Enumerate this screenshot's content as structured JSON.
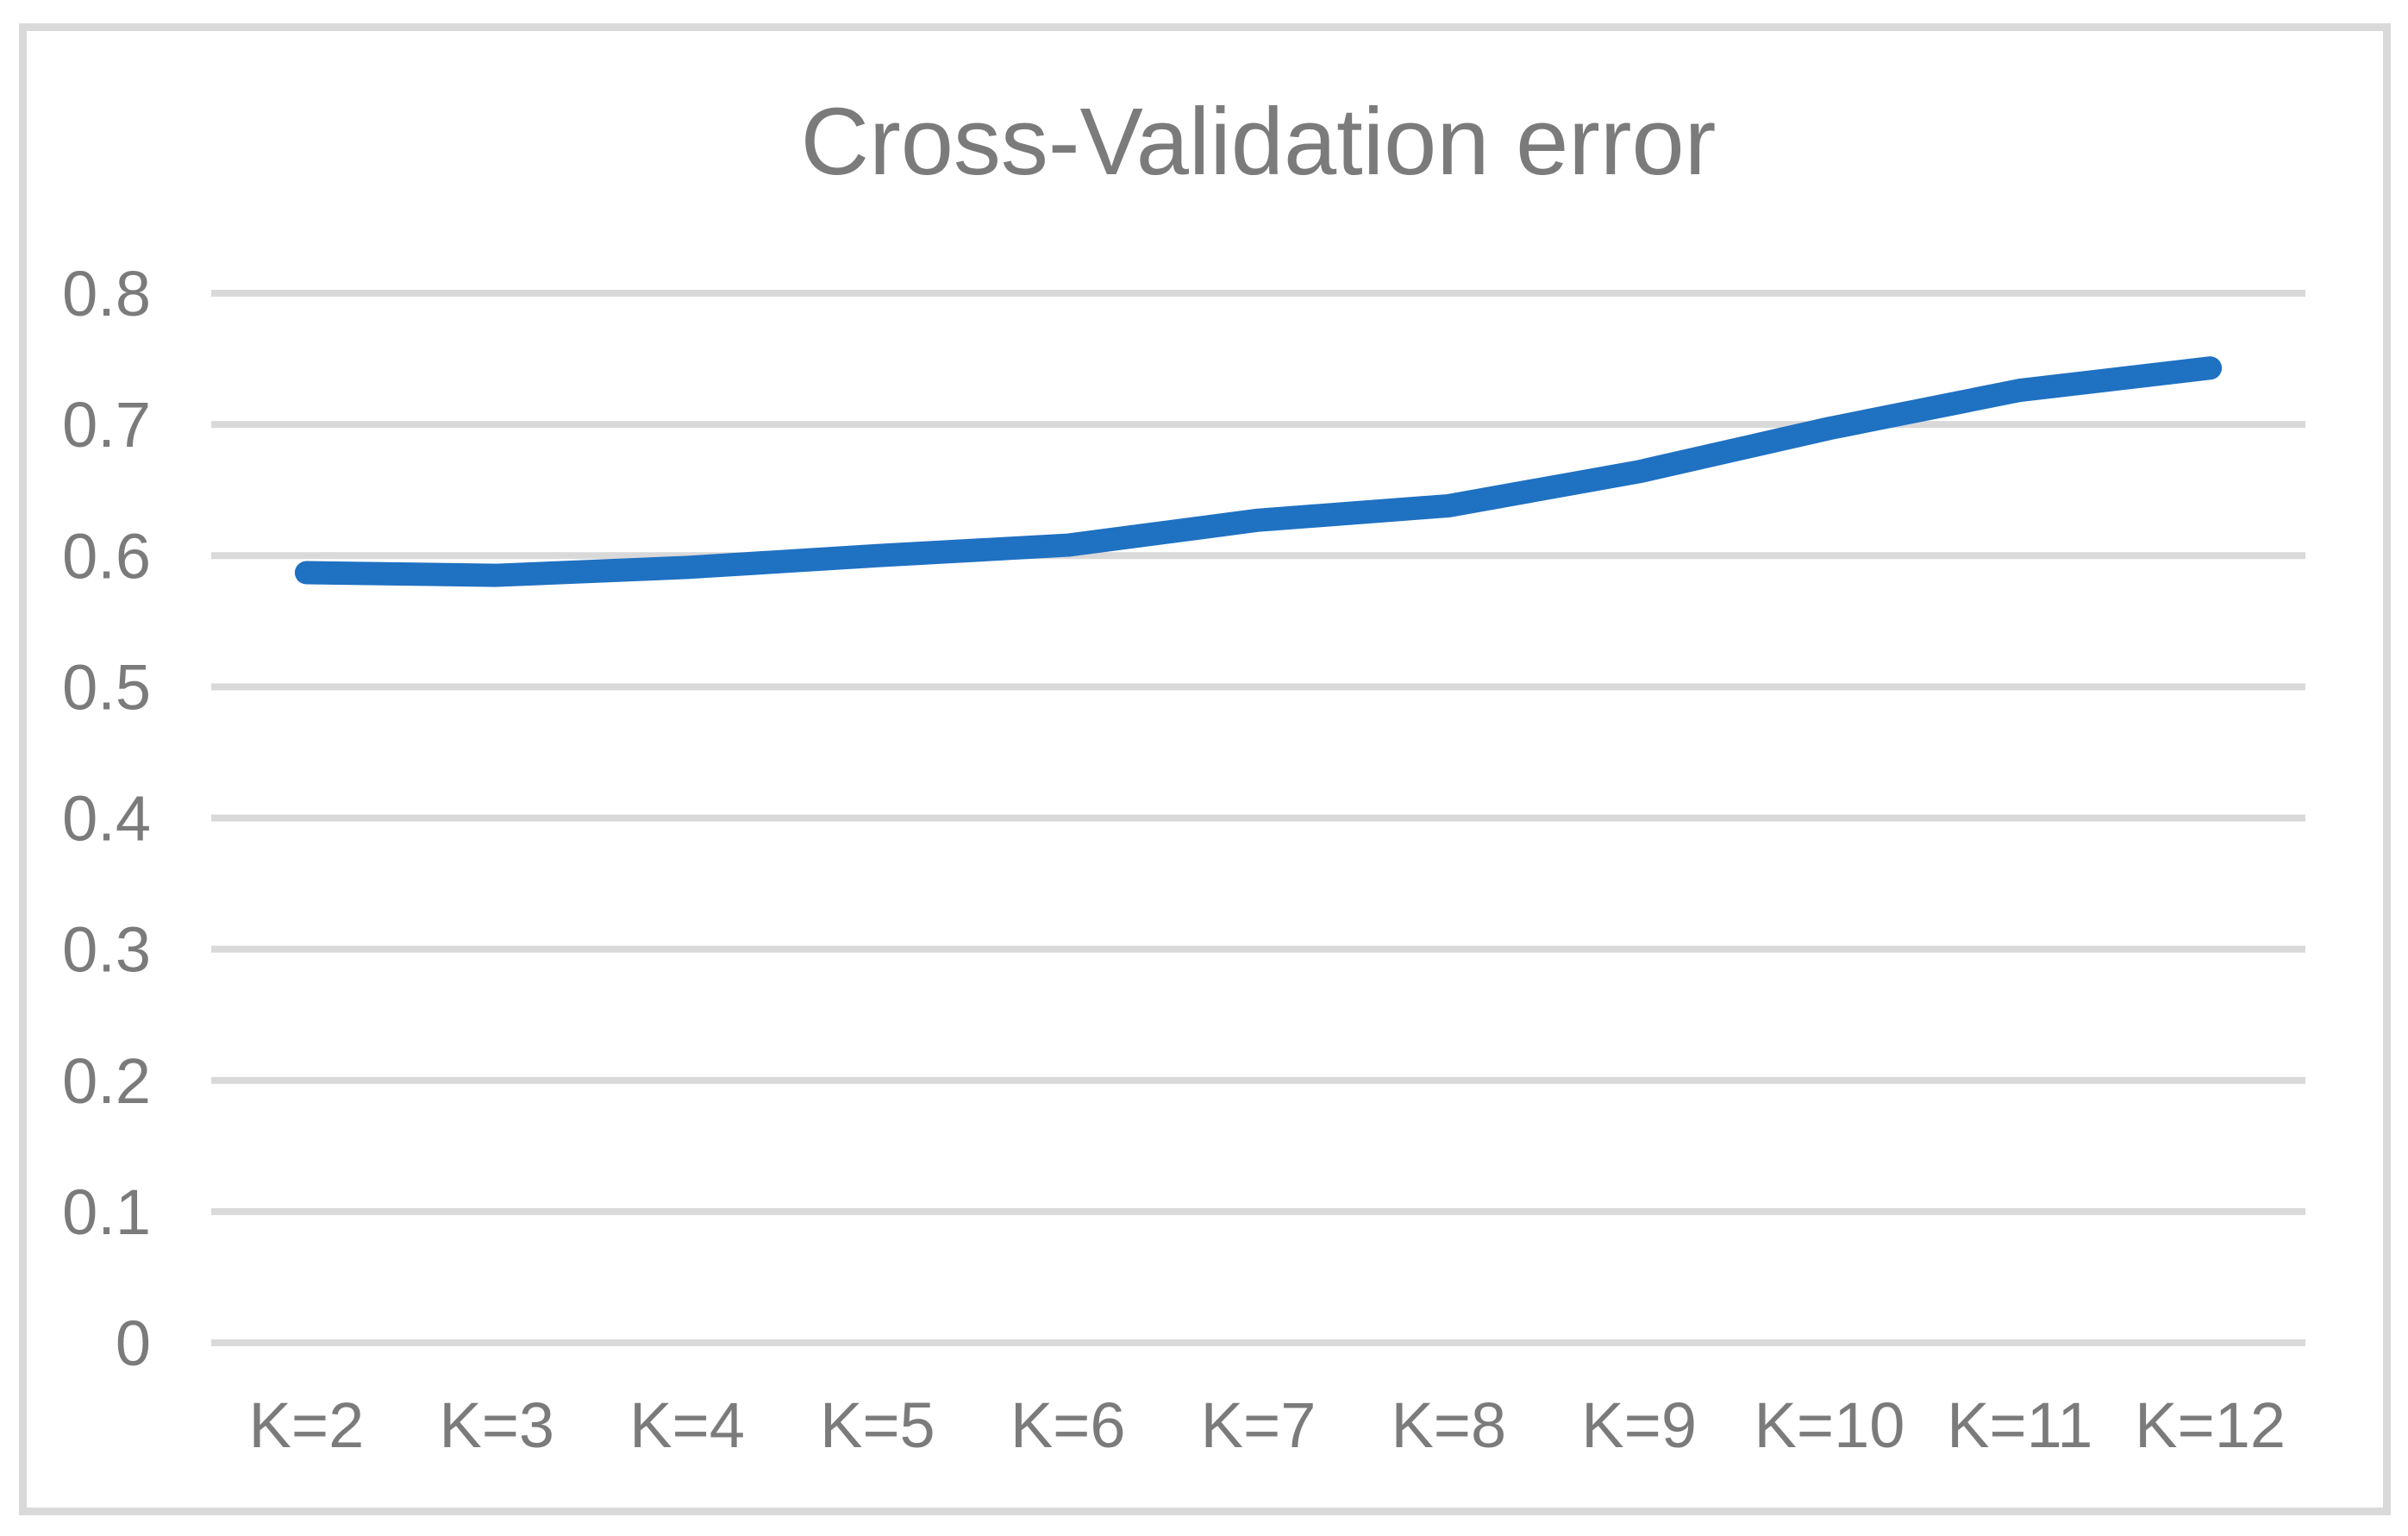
{
  "figure": {
    "title": "Cross-Validation error"
  },
  "chart_data": {
    "type": "line",
    "title": "Cross-Validation error",
    "categories": [
      "K=2",
      "K=3",
      "K=4",
      "K=5",
      "K=6",
      "K=7",
      "K=8",
      "K=9",
      "K=10",
      "K=11",
      "K=12"
    ],
    "values": [
      0.587,
      0.585,
      0.591,
      0.6,
      0.608,
      0.627,
      0.638,
      0.664,
      0.697,
      0.726,
      0.743
    ],
    "series_name": "Cross-Validation error",
    "xlabel": "",
    "ylabel": "",
    "ylim": [
      0,
      0.8
    ],
    "ytick_labels": [
      "0",
      "0.1",
      "0.2",
      "0.3",
      "0.4",
      "0.5",
      "0.6",
      "0.7",
      "0.8"
    ],
    "grid": "horizontal",
    "legend_position": "none",
    "colors": {
      "line": "#1f71c2",
      "gridline": "#d9d9d9",
      "frame_border": "#d9d9d9",
      "text": "#7b7b7b",
      "background": "#ffffff"
    }
  }
}
